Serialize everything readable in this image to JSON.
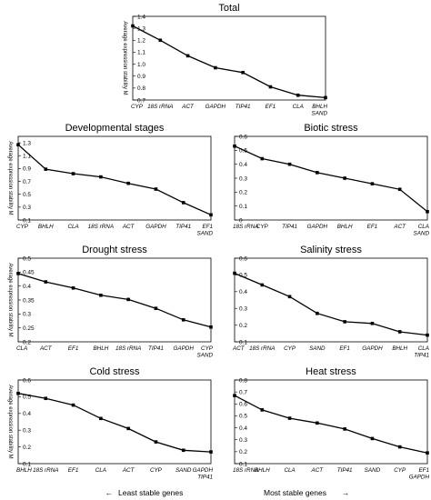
{
  "chart_data": [
    {
      "type": "line",
      "title": "Total",
      "ylabel": "Average expression stability M",
      "categories": [
        "CYP",
        "18S rRNA",
        "ACT",
        "GAPDH",
        "TIP41",
        "EF1",
        "CLA",
        "BHLH\nSAND"
      ],
      "values": [
        1.32,
        1.2,
        1.07,
        0.97,
        0.93,
        0.81,
        0.74,
        0.72
      ],
      "ylim": [
        0.7,
        1.4
      ],
      "yticks": [
        "1.4",
        "1.3",
        "1.2",
        "1.1",
        "1.0",
        "0.9",
        "0.8",
        "0.7"
      ]
    },
    {
      "type": "line",
      "title": "Developmental stages",
      "ylabel": "Average expression stability M",
      "categories": [
        "CYP",
        "BHLH",
        "CLA",
        "18S rRNA",
        "ACT",
        "GAPDH",
        "TIP41",
        "EF1\nSAND"
      ],
      "values": [
        1.27,
        0.89,
        0.82,
        0.77,
        0.67,
        0.58,
        0.37,
        0.18
      ],
      "ylim": [
        0.1,
        1.4
      ],
      "yticks": [
        "1.3",
        "1.1",
        "0.9",
        "0.7",
        "0.5",
        "0.3",
        "0.1"
      ]
    },
    {
      "type": "line",
      "title": "Biotic stress",
      "ylabel": "",
      "categories": [
        "18S rRNA",
        "CYP",
        "TIP41",
        "GAPDH",
        "BHLH",
        "EF1",
        "ACT",
        "CLA\nSAND"
      ],
      "values": [
        0.53,
        0.44,
        0.4,
        0.34,
        0.3,
        0.26,
        0.22,
        0.06
      ],
      "ylim": [
        0.0,
        0.6
      ],
      "yticks": [
        "0.6",
        "0.5",
        "0.4",
        "0.3",
        "0.2",
        "0.1",
        "0"
      ]
    },
    {
      "type": "line",
      "title": "Drought stress",
      "ylabel": "Average expression stability M",
      "categories": [
        "CLA",
        "ACT",
        "EF1",
        "BHLH",
        "18S rRNA",
        "TIP41",
        "GAPDH",
        "CYP\nSAND"
      ],
      "values": [
        0.445,
        0.415,
        0.393,
        0.367,
        0.352,
        0.32,
        0.279,
        0.253
      ],
      "ylim": [
        0.2,
        0.5
      ],
      "yticks": [
        "0.5",
        "0.45",
        "0.4",
        "0.35",
        "0.3",
        "0.25",
        "0.2"
      ]
    },
    {
      "type": "line",
      "title": "Salinity stress",
      "ylabel": "",
      "categories": [
        "ACT",
        "18S rRNA",
        "CYP",
        "SAND",
        "EF1",
        "GAPDH",
        "BHLH",
        "CLA\nTIP41"
      ],
      "values": [
        0.51,
        0.44,
        0.37,
        0.27,
        0.22,
        0.21,
        0.16,
        0.14
      ],
      "ylim": [
        0.1,
        0.6
      ],
      "yticks": [
        "0.6",
        "0.5",
        "0.4",
        "0.3",
        "0.2",
        "0.1"
      ]
    },
    {
      "type": "line",
      "title": "Cold stress",
      "ylabel": "Average expression stability M",
      "categories": [
        "BHLH",
        "18S rRNA",
        "EF1",
        "CLA",
        "ACT",
        "CYP",
        "SAND",
        "GAPDH\nTIP41"
      ],
      "values": [
        0.52,
        0.49,
        0.45,
        0.37,
        0.31,
        0.23,
        0.18,
        0.17
      ],
      "ylim": [
        0.1,
        0.6
      ],
      "yticks": [
        "0.6",
        "0.5",
        "0.4",
        "0.3",
        "0.2",
        "0.1"
      ]
    },
    {
      "type": "line",
      "title": "Heat stress",
      "ylabel": "",
      "categories": [
        "18S rRNA",
        "BHLH",
        "CLA",
        "ACT",
        "TIP41",
        "SAND",
        "CYP",
        "EF1\nGAPDH"
      ],
      "values": [
        0.67,
        0.55,
        0.48,
        0.44,
        0.39,
        0.31,
        0.24,
        0.19
      ],
      "ylim": [
        0.1,
        0.8
      ],
      "yticks": [
        "0.8",
        "0.7",
        "0.6",
        "0.5",
        "0.4",
        "0.3",
        "0.2",
        "0.1"
      ]
    }
  ],
  "footer": {
    "left_arrow": "←",
    "least_stable": "Least stable genes",
    "most_stable": "Most stable genes",
    "right_arrow": "→"
  }
}
